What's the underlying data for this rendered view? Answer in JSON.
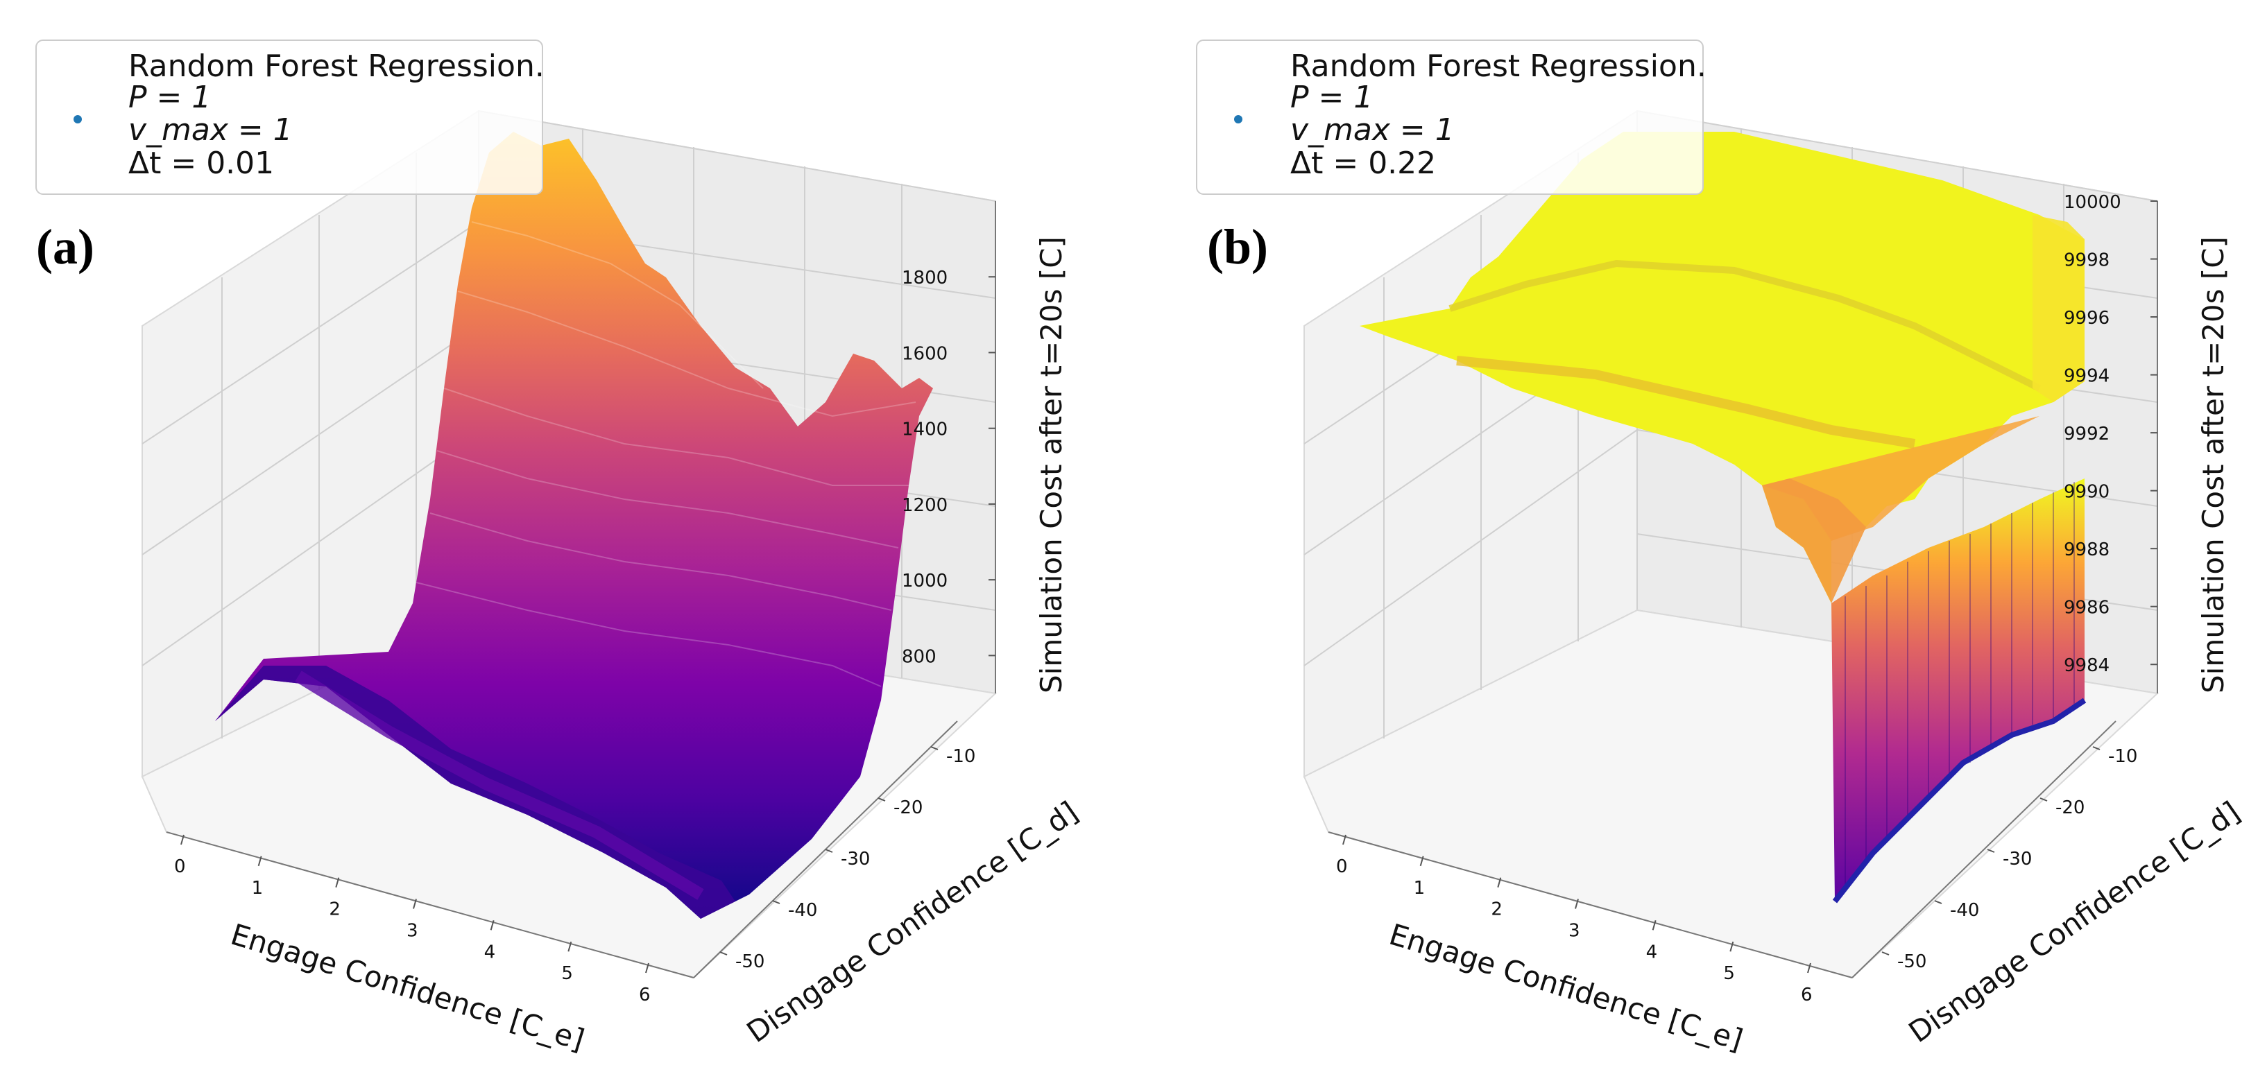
{
  "chart_data": [
    {
      "panel": "(a)",
      "type": "surface3d",
      "legend": {
        "title": "Random Forest Regression.",
        "lines": [
          "P = 1",
          "v_max = 1",
          "Δt = 0.01"
        ],
        "placement": "top-left"
      },
      "x_axis": {
        "label": "Engage Confidence [C_e]",
        "range": [
          0,
          6
        ],
        "ticks": [
          0,
          1,
          2,
          3,
          4,
          5,
          6
        ]
      },
      "y_axis": {
        "label": "Disngage Confidence [C_d]",
        "range": [
          -55,
          -5
        ],
        "ticks": [
          -50,
          -40,
          -30,
          -20,
          -10
        ]
      },
      "z_axis": {
        "label": "Simulation Cost after t=20s [C]",
        "range": [
          700,
          2000
        ],
        "ticks": [
          800,
          1000,
          1200,
          1400,
          1600,
          1800
        ]
      },
      "colormap": "plasma",
      "surface_description_values": {
        "min_cost": 720,
        "max_cost": 1960
      }
    },
    {
      "panel": "(b)",
      "type": "surface3d",
      "legend": {
        "title": "Random Forest Regression.",
        "lines": [
          "P = 1",
          "v_max = 1",
          "Δt = 0.22"
        ],
        "placement": "top-left"
      },
      "x_axis": {
        "label": "Engage Confidence [C_e]",
        "range": [
          0,
          6
        ],
        "ticks": [
          0,
          1,
          2,
          3,
          4,
          5,
          6
        ]
      },
      "y_axis": {
        "label": "Disngage Confidence [C_d]",
        "range": [
          -55,
          -5
        ],
        "ticks": [
          -50,
          -40,
          -30,
          -20,
          -10
        ]
      },
      "z_axis": {
        "label": "Simulation Cost after t=20s [C]",
        "range": [
          9983,
          10000
        ],
        "ticks": [
          9984,
          9986,
          9988,
          9990,
          9992,
          9994,
          9996,
          9998,
          10000
        ]
      },
      "colormap": "plasma",
      "surface_description_values": {
        "min_cost": 9983,
        "max_cost": 10000
      }
    }
  ],
  "panel_tags": [
    "(a)",
    "(b)"
  ]
}
